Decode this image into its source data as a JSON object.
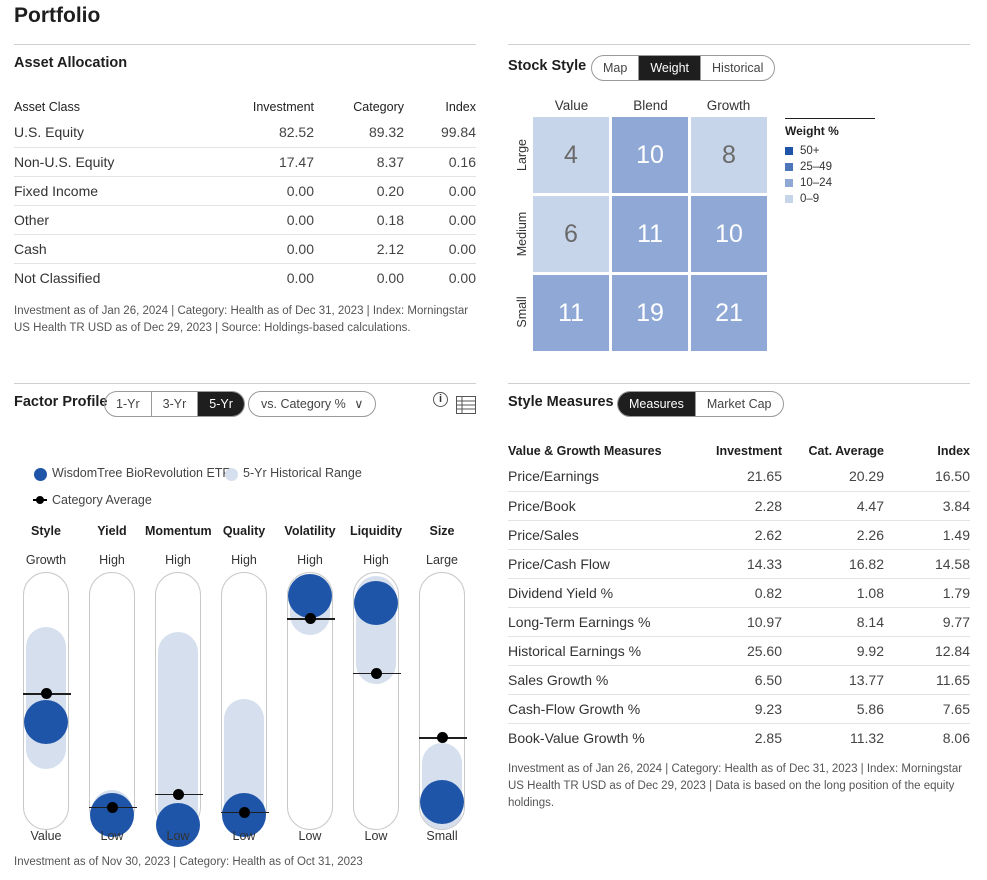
{
  "page": {
    "title": "Portfolio"
  },
  "asset_allocation": {
    "title": "Asset Allocation",
    "columns": [
      "Asset Class",
      "Investment",
      "Category",
      "Index"
    ],
    "rows": [
      [
        "U.S. Equity",
        "82.52",
        "89.32",
        "99.84"
      ],
      [
        "Non-U.S. Equity",
        "17.47",
        "8.37",
        "0.16"
      ],
      [
        "Fixed Income",
        "0.00",
        "0.20",
        "0.00"
      ],
      [
        "Other",
        "0.00",
        "0.18",
        "0.00"
      ],
      [
        "Cash",
        "0.00",
        "2.12",
        "0.00"
      ],
      [
        "Not Classified",
        "0.00",
        "0.00",
        "0.00"
      ]
    ],
    "footnote_line1": "Investment as of Jan 26, 2024 | Category: Health as of Dec 31, 2023 | Index: Morningstar",
    "footnote_line2": "US Health TR USD as of Dec 29, 2023 | Source: Holdings-based calculations."
  },
  "stock_style": {
    "title": "Stock Style",
    "tabs": [
      "Map",
      "Weight",
      "Historical"
    ],
    "active_tab": "Weight",
    "columns": [
      "Value",
      "Blend",
      "Growth"
    ],
    "rows": [
      "Large",
      "Medium",
      "Small"
    ],
    "cells": [
      [
        "4",
        "10",
        "8"
      ],
      [
        "6",
        "11",
        "10"
      ],
      [
        "11",
        "19",
        "21"
      ]
    ],
    "legend": {
      "title": "Weight %",
      "items": [
        {
          "label": "50+",
          "color": "#1f55a8"
        },
        {
          "label": "25–49",
          "color": "#4d76ba"
        },
        {
          "label": "10–24",
          "color": "#8fa8d6"
        },
        {
          "label": "0–9",
          "color": "#c7d5ea"
        }
      ]
    }
  },
  "factor_profile": {
    "title": "Factor Profile",
    "periods": [
      "1-Yr",
      "3-Yr",
      "5-Yr"
    ],
    "active_period": "5-Yr",
    "dropdown_label": "vs. Category %",
    "dropdown_caret": "∨",
    "info_icon": "info-icon",
    "table_icon": "table-icon",
    "legend_fund": "WisdomTree BioRevolution ETF",
    "legend_range": "5-Yr Historical Range",
    "legend_category": "Category Average",
    "fund_color": "#1f55a8",
    "range_color": "#d6dfee",
    "factors": [
      {
        "name": "Style",
        "top": "Growth",
        "bottom": "Value",
        "fund": 0.42,
        "cat": 0.53,
        "range": [
          0.24,
          0.79
        ]
      },
      {
        "name": "Yield",
        "top": "High",
        "bottom": "Low",
        "fund": 0.06,
        "cat": 0.09,
        "range": [
          0.0,
          0.16
        ]
      },
      {
        "name": "Momentum",
        "top": "High",
        "bottom": "Low",
        "fund": 0.02,
        "cat": 0.14,
        "range": [
          0.0,
          0.77
        ]
      },
      {
        "name": "Quality",
        "top": "High",
        "bottom": "Low",
        "fund": 0.06,
        "cat": 0.07,
        "range": [
          0.0,
          0.51
        ]
      },
      {
        "name": "Volatility",
        "top": "High",
        "bottom": "Low",
        "fund": 0.92,
        "cat": 0.82,
        "range": [
          0.76,
          0.99
        ]
      },
      {
        "name": "Liquidity",
        "top": "High",
        "bottom": "Low",
        "fund": 0.88,
        "cat": 0.61,
        "range": [
          0.57,
          0.99
        ]
      },
      {
        "name": "Size",
        "top": "Large",
        "bottom": "Small",
        "fund": 0.11,
        "cat": 0.36,
        "range": [
          0.0,
          0.34
        ]
      }
    ],
    "footnote": "Investment as of Nov 30, 2023 | Category: Health as of Oct 31, 2023"
  },
  "style_measures": {
    "title": "Style Measures",
    "tabs": [
      "Measures",
      "Market Cap"
    ],
    "active_tab": "Measures",
    "columns": [
      "Value & Growth Measures",
      "Investment",
      "Cat. Average",
      "Index"
    ],
    "rows": [
      [
        "Price/Earnings",
        "21.65",
        "20.29",
        "16.50"
      ],
      [
        "Price/Book",
        "2.28",
        "4.47",
        "3.84"
      ],
      [
        "Price/Sales",
        "2.62",
        "2.26",
        "1.49"
      ],
      [
        "Price/Cash Flow",
        "14.33",
        "16.82",
        "14.58"
      ],
      [
        "Dividend Yield %",
        "0.82",
        "1.08",
        "1.79"
      ],
      [
        "Long-Term Earnings %",
        "10.97",
        "8.14",
        "9.77"
      ],
      [
        "Historical Earnings %",
        "25.60",
        "9.92",
        "12.84"
      ],
      [
        "Sales Growth %",
        "6.50",
        "13.77",
        "11.65"
      ],
      [
        "Cash-Flow Growth %",
        "9.23",
        "5.86",
        "7.65"
      ],
      [
        "Book-Value Growth %",
        "2.85",
        "11.32",
        "8.06"
      ]
    ],
    "footnote_line1": "Investment as of Jan 26, 2024 | Category: Health as of Dec 31, 2023 | Index: Morningstar",
    "footnote_line2": "US Health TR USD as of Dec 29, 2023 | Data is based on the long position of the equity",
    "footnote_line3": "holdings."
  }
}
